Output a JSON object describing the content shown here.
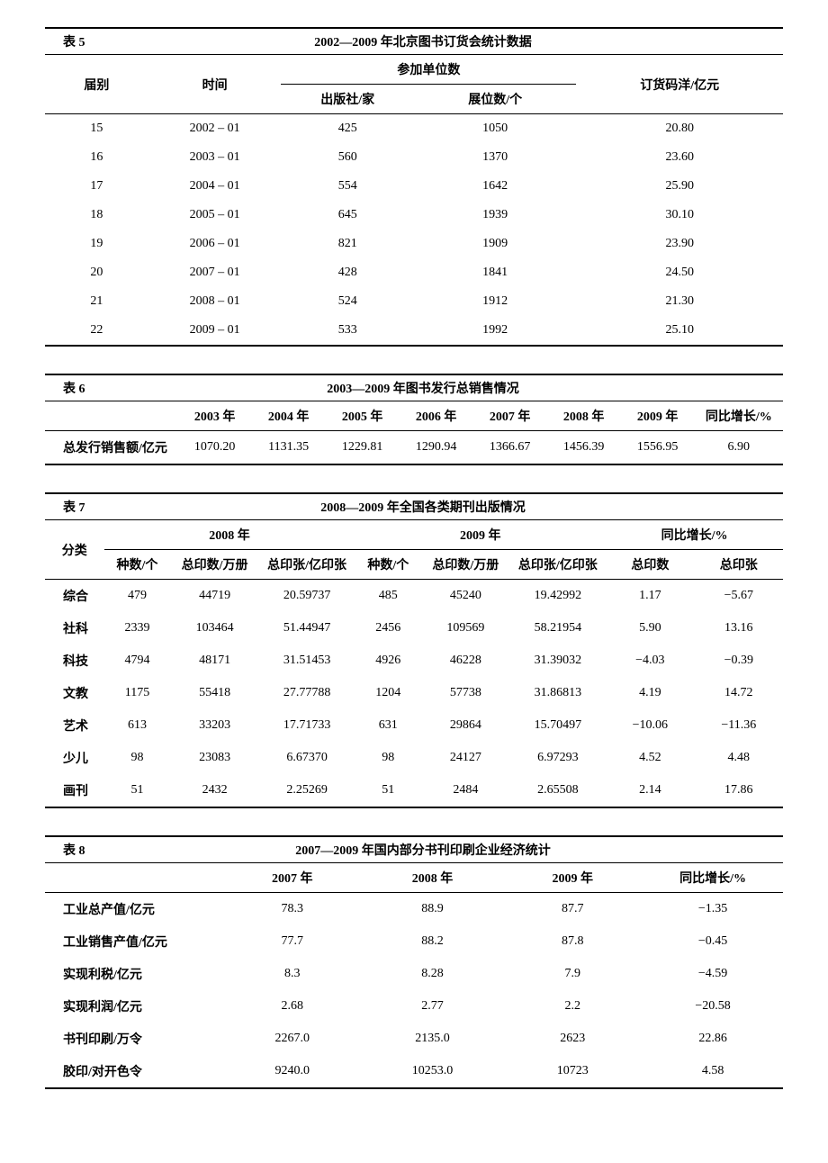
{
  "table5": {
    "label": "表 5",
    "title": "2002—2009 年北京图书订货会统计数据",
    "headers": {
      "col1": "届别",
      "col2": "时间",
      "group": "参加单位数",
      "col3": "出版社/家",
      "col4": "展位数/个",
      "col5": "订货码洋/亿元"
    },
    "rows": [
      {
        "c1": "15",
        "c2": "2002 – 01",
        "c3": "425",
        "c4": "1050",
        "c5": "20.80"
      },
      {
        "c1": "16",
        "c2": "2003 – 01",
        "c3": "560",
        "c4": "1370",
        "c5": "23.60"
      },
      {
        "c1": "17",
        "c2": "2004 – 01",
        "c3": "554",
        "c4": "1642",
        "c5": "25.90"
      },
      {
        "c1": "18",
        "c2": "2005 – 01",
        "c3": "645",
        "c4": "1939",
        "c5": "30.10"
      },
      {
        "c1": "19",
        "c2": "2006 – 01",
        "c3": "821",
        "c4": "1909",
        "c5": "23.90"
      },
      {
        "c1": "20",
        "c2": "2007 – 01",
        "c3": "428",
        "c4": "1841",
        "c5": "24.50"
      },
      {
        "c1": "21",
        "c2": "2008 – 01",
        "c3": "524",
        "c4": "1912",
        "c5": "21.30"
      },
      {
        "c1": "22",
        "c2": "2009 – 01",
        "c3": "533",
        "c4": "1992",
        "c5": "25.10"
      }
    ]
  },
  "table6": {
    "label": "表 6",
    "title": "2003—2009 年图书发行总销售情况",
    "headers": [
      "",
      "2003 年",
      "2004 年",
      "2005 年",
      "2006 年",
      "2007 年",
      "2008 年",
      "2009 年",
      "同比增长/%"
    ],
    "row": {
      "label": "总发行销售额/亿元",
      "vals": [
        "1070.20",
        "1131.35",
        "1229.81",
        "1290.94",
        "1366.67",
        "1456.39",
        "1556.95",
        "6.90"
      ]
    }
  },
  "table7": {
    "label": "表 7",
    "title": "2008—2009 年全国各类期刊出版情况",
    "topHeaders": {
      "c1": "分类",
      "g1": "2008 年",
      "g2": "2009 年",
      "g3": "同比增长/%"
    },
    "subHeaders": [
      "种数/个",
      "总印数/万册",
      "总印张/亿印张",
      "种数/个",
      "总印数/万册",
      "总印张/亿印张",
      "总印数",
      "总印张"
    ],
    "rows": [
      {
        "cat": "综合",
        "v": [
          "479",
          "44719",
          "20.59737",
          "485",
          "45240",
          "19.42992",
          "1.17",
          "−5.67"
        ]
      },
      {
        "cat": "社科",
        "v": [
          "2339",
          "103464",
          "51.44947",
          "2456",
          "109569",
          "58.21954",
          "5.90",
          "13.16"
        ]
      },
      {
        "cat": "科技",
        "v": [
          "4794",
          "48171",
          "31.51453",
          "4926",
          "46228",
          "31.39032",
          "−4.03",
          "−0.39"
        ]
      },
      {
        "cat": "文教",
        "v": [
          "1175",
          "55418",
          "27.77788",
          "1204",
          "57738",
          "31.86813",
          "4.19",
          "14.72"
        ]
      },
      {
        "cat": "艺术",
        "v": [
          "613",
          "33203",
          "17.71733",
          "631",
          "29864",
          "15.70497",
          "−10.06",
          "−11.36"
        ]
      },
      {
        "cat": "少儿",
        "v": [
          "98",
          "23083",
          "6.67370",
          "98",
          "24127",
          "6.97293",
          "4.52",
          "4.48"
        ]
      },
      {
        "cat": "画刊",
        "v": [
          "51",
          "2432",
          "2.25269",
          "51",
          "2484",
          "2.65508",
          "2.14",
          "17.86"
        ]
      }
    ]
  },
  "table8": {
    "label": "表 8",
    "title": "2007—2009 年国内部分书刊印刷企业经济统计",
    "headers": [
      "",
      "2007 年",
      "2008 年",
      "2009 年",
      "同比增长/%"
    ],
    "rows": [
      {
        "label": "工业总产值/亿元",
        "v": [
          "78.3",
          "88.9",
          "87.7",
          "−1.35"
        ]
      },
      {
        "label": "工业销售产值/亿元",
        "v": [
          "77.7",
          "88.2",
          "87.8",
          "−0.45"
        ]
      },
      {
        "label": "实现利税/亿元",
        "v": [
          "8.3",
          "8.28",
          "7.9",
          "−4.59"
        ]
      },
      {
        "label": "实现利润/亿元",
        "v": [
          "2.68",
          "2.77",
          "2.2",
          "−20.58"
        ]
      },
      {
        "label": "书刊印刷/万令",
        "v": [
          "2267.0",
          "2135.0",
          "2623",
          "22.86"
        ]
      },
      {
        "label": "胶印/对开色令",
        "v": [
          "9240.0",
          "10253.0",
          "10723",
          "4.58"
        ]
      }
    ]
  }
}
